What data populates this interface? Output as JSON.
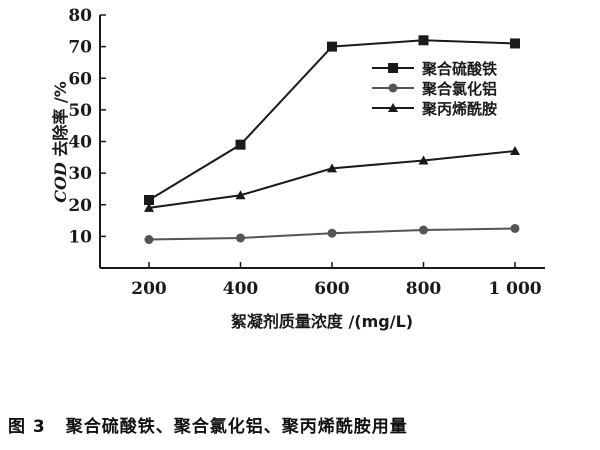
{
  "chart_data": {
    "type": "line",
    "x": [
      200,
      400,
      600,
      800,
      1000
    ],
    "x_tick_labels": [
      "200",
      "400",
      "600",
      "800",
      "1 000"
    ],
    "xlim": [
      200,
      1000
    ],
    "ylim": [
      0,
      80
    ],
    "y_ticks": [
      0,
      10,
      20,
      30,
      40,
      50,
      60,
      70,
      80
    ],
    "y_tick_labels": [
      "",
      "10",
      "20",
      "30",
      "40",
      "50",
      "60",
      "70",
      "80"
    ],
    "xlabel": "絮凝剂质量浓度 /(mg/L)",
    "ylabel_prefix": "COD",
    "ylabel_suffix": " 去除率 /%",
    "legend_position": "upper-right",
    "grid": false,
    "series": [
      {
        "name": "聚合硫酸铁",
        "marker": "square",
        "color": "#1a1a1a",
        "values": [
          21.5,
          39,
          70,
          72,
          71
        ]
      },
      {
        "name": "聚合氯化铝",
        "marker": "circle",
        "color": "#555555",
        "values": [
          9,
          9.5,
          11,
          12,
          12.5
        ]
      },
      {
        "name": "聚丙烯酰胺",
        "marker": "triangle",
        "color": "#1a1a1a",
        "values": [
          19,
          23,
          31.5,
          34,
          37
        ]
      }
    ]
  },
  "caption": {
    "figure_number": "图 3",
    "text": "聚合硫酸铁、聚合氯化铝、聚丙烯酰胺用量"
  }
}
